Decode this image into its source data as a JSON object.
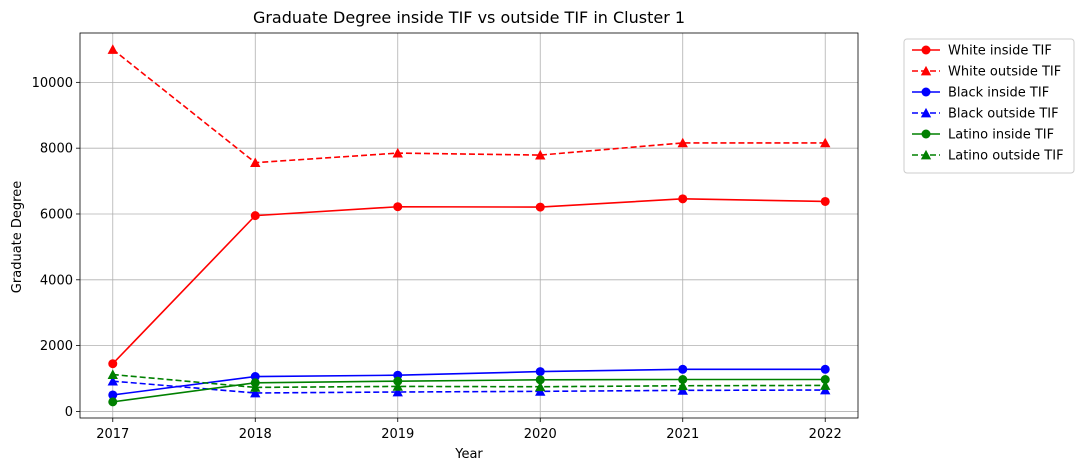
{
  "chart_data": {
    "type": "line",
    "title": "Graduate Degree inside TIF vs outside TIF in Cluster 1",
    "xlabel": "Year",
    "ylabel": "Graduate Degree",
    "x": [
      2017,
      2018,
      2019,
      2020,
      2021,
      2022
    ],
    "xticks": [
      "2017",
      "2018",
      "2019",
      "2020",
      "2021",
      "2022"
    ],
    "ylim": [
      -200,
      11500
    ],
    "yticks": [
      0,
      2000,
      4000,
      6000,
      8000,
      10000
    ],
    "grid": true,
    "legend_position": "outside-right-top",
    "series": [
      {
        "name": "White inside TIF",
        "color": "#ff0000",
        "linestyle": "solid",
        "marker": "circle",
        "values": [
          1450,
          5950,
          6220,
          6210,
          6460,
          6380
        ]
      },
      {
        "name": "White outside TIF",
        "color": "#ff0000",
        "linestyle": "dashed",
        "marker": "triangle",
        "values": [
          11000,
          7560,
          7850,
          7790,
          8160,
          8160
        ]
      },
      {
        "name": "Black inside TIF",
        "color": "#0000ff",
        "linestyle": "solid",
        "marker": "circle",
        "values": [
          500,
          1060,
          1100,
          1210,
          1280,
          1280
        ]
      },
      {
        "name": "Black outside TIF",
        "color": "#0000ff",
        "linestyle": "dashed",
        "marker": "triangle",
        "values": [
          920,
          560,
          590,
          610,
          640,
          650
        ]
      },
      {
        "name": "Latino inside TIF",
        "color": "#008000",
        "linestyle": "solid",
        "marker": "circle",
        "values": [
          290,
          870,
          920,
          960,
          970,
          970
        ]
      },
      {
        "name": "Latino outside TIF",
        "color": "#008000",
        "linestyle": "dashed",
        "marker": "triangle",
        "values": [
          1120,
          730,
          760,
          750,
          780,
          790
        ]
      }
    ]
  }
}
